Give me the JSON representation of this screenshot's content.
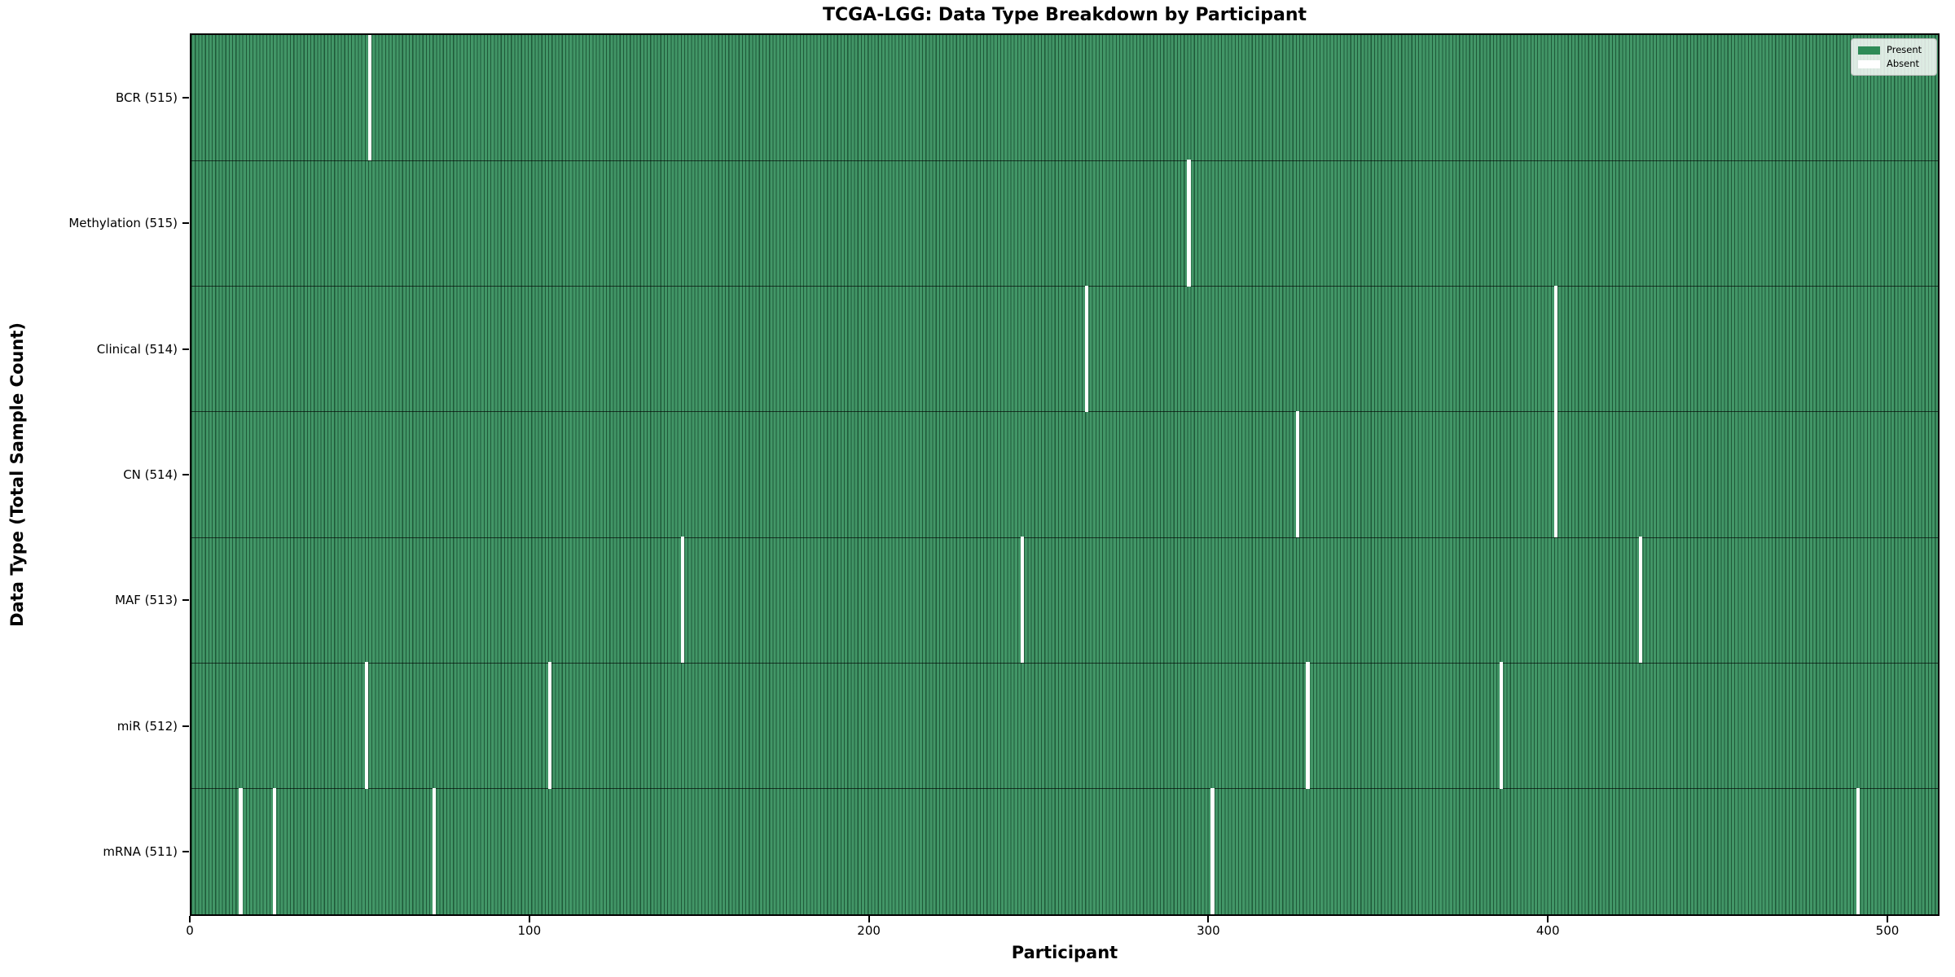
{
  "figure": {
    "title": "TCGA-LGG: Data Type Breakdown by Participant",
    "xlabel": "Participant",
    "ylabel": "Data Type (Total Sample Count)"
  },
  "legend": {
    "items": [
      {
        "label": "Present",
        "color": "#2e8b57"
      },
      {
        "label": "Absent",
        "color": "#ffffff"
      }
    ]
  },
  "chart_data": {
    "type": "heatmap",
    "title": "TCGA-LGG: Data Type Breakdown by Participant",
    "xlabel": "Participant",
    "ylabel": "Data Type (Total Sample Count)",
    "x_ticks": [
      0,
      100,
      200,
      300,
      400,
      500
    ],
    "xlim": [
      0,
      516
    ],
    "n_participants": 516,
    "present_color": "#2e8b57",
    "absent_color": "#ffffff",
    "grid": false,
    "legend_entries": [
      "Present",
      "Absent"
    ],
    "legend_position": "upper right",
    "rows": [
      {
        "label": "BCR (515)",
        "data_type": "BCR",
        "total_samples": 515,
        "absent_count": 1,
        "absent_participants": [
          52
        ]
      },
      {
        "label": "Methylation (515)",
        "data_type": "Methylation",
        "total_samples": 515,
        "absent_count": 1,
        "absent_participants": [
          293
        ]
      },
      {
        "label": "Clinical (514)",
        "data_type": "Clinical",
        "total_samples": 514,
        "absent_count": 2,
        "absent_participants": [
          263,
          401
        ]
      },
      {
        "label": "CN (514)",
        "data_type": "CN",
        "total_samples": 514,
        "absent_count": 2,
        "absent_participants": [
          325,
          401
        ]
      },
      {
        "label": "MAF (513)",
        "data_type": "MAF",
        "total_samples": 513,
        "absent_count": 3,
        "absent_participants": [
          144,
          244,
          426
        ]
      },
      {
        "label": "miR (512)",
        "data_type": "miR",
        "total_samples": 512,
        "absent_count": 4,
        "absent_participants": [
          51,
          105,
          328,
          385
        ]
      },
      {
        "label": "mRNA (511)",
        "data_type": "mRNA",
        "total_samples": 511,
        "absent_count": 5,
        "absent_participants": [
          14,
          24,
          71,
          300,
          490
        ]
      }
    ]
  }
}
